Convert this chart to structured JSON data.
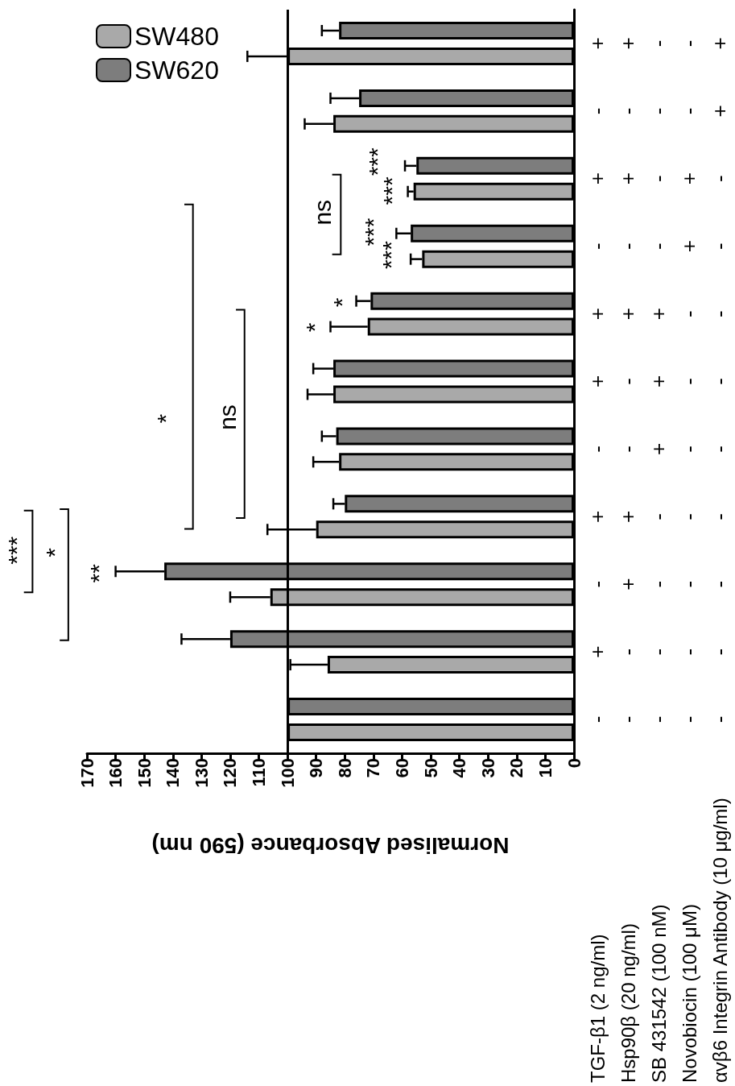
{
  "chart_data": {
    "type": "bar",
    "orientation": "horizontal",
    "xlabel": "Normalised Absorbance (590 nm)",
    "categories": [
      "+\n+\n-\n-\n+",
      "-\n-\n-\n-\n+",
      "+\n+\n-\n+\n-",
      "-\n-\n-\n+\n-",
      "+\n+\n+\n-\n-",
      "+\n-\n+\n-\n-",
      "-\n-\n+\n-\n-",
      "+\n+\n-\n-\n-",
      "-\n+\n-\n-\n-",
      "+\n-\n-\n-\n-",
      "-\n-\n-\n-\n-"
    ],
    "series": [
      {
        "name": "SW480",
        "color": "#a9a9a9",
        "values": [
          100,
          84,
          56,
          53,
          72,
          84,
          82,
          90,
          106,
          86,
          100
        ],
        "errors": [
          14,
          10,
          2,
          4,
          13,
          9,
          9,
          17,
          14,
          13,
          null
        ]
      },
      {
        "name": "SW620",
        "color": "#7d7d7d",
        "values": [
          82,
          75,
          55,
          57,
          71,
          84,
          83,
          80,
          143,
          120,
          100
        ],
        "errors": [
          6,
          10,
          4,
          5,
          5,
          7,
          5,
          4,
          17,
          17,
          null
        ]
      }
    ],
    "xlim": [
      170,
      0
    ],
    "xticks": [
      0,
      10,
      20,
      30,
      40,
      50,
      60,
      70,
      80,
      90,
      100,
      110,
      120,
      130,
      140,
      150,
      160,
      170
    ],
    "ref_lines": [
      {
        "axis": "x",
        "value": 100,
        "color": "#000000"
      }
    ],
    "legend": "top left",
    "grid": false,
    "annotations": [
      "TGF-β1 (2 ng/ml)",
      "Hsp90β (20 ng/ml)",
      "SB 431542 (100 nM)",
      "Novobiocin (100 μM)",
      "αvβ6 Integrin Antibody (10 μg/ml)",
      "***",
      "*",
      "*",
      "ns",
      "ns",
      "**",
      "*",
      "*",
      "***",
      "***",
      "***",
      "***"
    ]
  }
}
